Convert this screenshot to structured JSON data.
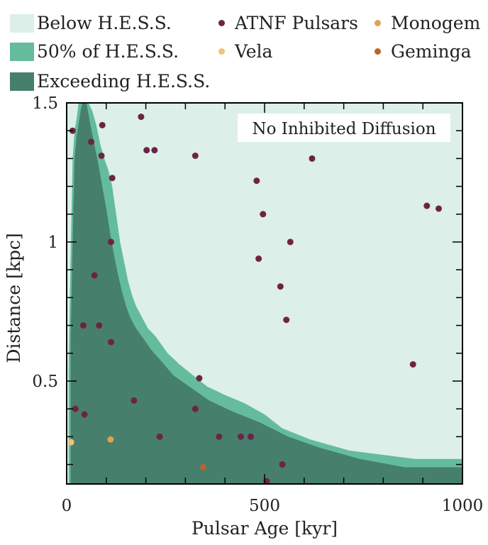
{
  "legend": {
    "below": "Below H.E.S.S.",
    "half": "50% of H.E.S.S.",
    "exceeding": "Exceeding H.E.S.S.",
    "atnf": "ATNF Pulsars",
    "vela": "Vela",
    "monogem": "Monogem",
    "geminga": "Geminga"
  },
  "colors": {
    "below": "#dcefe9",
    "half": "#64bc9c",
    "exceeding": "#467f6c",
    "atnf": "#6e2346",
    "vela": "#f0c27b",
    "monogem": "#e0a24d",
    "geminga": "#b8642a"
  },
  "chart_data": {
    "type": "scatter",
    "xlabel": "Pulsar Age [kyr]",
    "ylabel": "Distance [kpc]",
    "xlim": [
      0,
      1000
    ],
    "ylim": [
      0.13,
      1.5
    ],
    "xticks": [
      0,
      500,
      1000
    ],
    "yticks": [
      0.5,
      1,
      1.5
    ],
    "ytick_labels": [
      "0.5",
      "1",
      "1.5"
    ],
    "annotation": "No Inhibited Diffusion",
    "regions": {
      "half_boundary": [
        [
          5,
          0.13
        ],
        [
          5,
          0.55
        ],
        [
          10,
          0.95
        ],
        [
          15,
          1.3
        ],
        [
          20,
          1.4
        ],
        [
          25,
          1.44
        ],
        [
          30,
          1.5
        ],
        [
          55,
          1.5
        ],
        [
          65,
          1.47
        ],
        [
          75,
          1.42
        ],
        [
          85,
          1.35
        ],
        [
          95,
          1.3
        ],
        [
          105,
          1.26
        ],
        [
          115,
          1.2
        ],
        [
          125,
          1.1
        ],
        [
          135,
          1.0
        ],
        [
          145,
          0.93
        ],
        [
          155,
          0.86
        ],
        [
          165,
          0.81
        ],
        [
          175,
          0.77
        ],
        [
          190,
          0.73
        ],
        [
          205,
          0.69
        ],
        [
          225,
          0.66
        ],
        [
          255,
          0.6
        ],
        [
          285,
          0.56
        ],
        [
          320,
          0.52
        ],
        [
          355,
          0.48
        ],
        [
          400,
          0.45
        ],
        [
          450,
          0.42
        ],
        [
          500,
          0.38
        ],
        [
          545,
          0.33
        ],
        [
          615,
          0.29
        ],
        [
          715,
          0.25
        ],
        [
          880,
          0.22
        ],
        [
          1000,
          0.22
        ]
      ],
      "exceeding_boundary": [
        [
          10,
          0.13
        ],
        [
          10,
          0.65
        ],
        [
          15,
          1.0
        ],
        [
          20,
          1.3
        ],
        [
          25,
          1.38
        ],
        [
          30,
          1.42
        ],
        [
          35,
          1.47
        ],
        [
          40,
          1.5
        ],
        [
          50,
          1.5
        ],
        [
          60,
          1.42
        ],
        [
          70,
          1.35
        ],
        [
          80,
          1.28
        ],
        [
          90,
          1.2
        ],
        [
          100,
          1.12
        ],
        [
          110,
          1.03
        ],
        [
          120,
          0.95
        ],
        [
          130,
          0.88
        ],
        [
          140,
          0.82
        ],
        [
          150,
          0.77
        ],
        [
          160,
          0.73
        ],
        [
          175,
          0.69
        ],
        [
          195,
          0.65
        ],
        [
          215,
          0.61
        ],
        [
          240,
          0.57
        ],
        [
          270,
          0.52
        ],
        [
          310,
          0.48
        ],
        [
          360,
          0.43
        ],
        [
          420,
          0.39
        ],
        [
          490,
          0.35
        ],
        [
          560,
          0.3
        ],
        [
          640,
          0.26
        ],
        [
          740,
          0.22
        ],
        [
          855,
          0.19
        ],
        [
          1000,
          0.19
        ]
      ]
    },
    "series": [
      {
        "name": "ATNF Pulsars",
        "points": [
          [
            15,
            1.4
          ],
          [
            90,
            1.42
          ],
          [
            62,
            1.36
          ],
          [
            88,
            1.31
          ],
          [
            115,
            1.23
          ],
          [
            188,
            1.45
          ],
          [
            202,
            1.33
          ],
          [
            222,
            1.33
          ],
          [
            325,
            1.31
          ],
          [
            620,
            1.3
          ],
          [
            480,
            1.22
          ],
          [
            496,
            1.1
          ],
          [
            910,
            1.13
          ],
          [
            940,
            1.12
          ],
          [
            112,
            1.0
          ],
          [
            565,
            1.0
          ],
          [
            485,
            0.94
          ],
          [
            70,
            0.88
          ],
          [
            540,
            0.84
          ],
          [
            555,
            0.72
          ],
          [
            42,
            0.7
          ],
          [
            82,
            0.7
          ],
          [
            112,
            0.64
          ],
          [
            875,
            0.56
          ],
          [
            335,
            0.51
          ],
          [
            170,
            0.43
          ],
          [
            22,
            0.4
          ],
          [
            325,
            0.4
          ],
          [
            45,
            0.38
          ],
          [
            235,
            0.3
          ],
          [
            385,
            0.3
          ],
          [
            440,
            0.3
          ],
          [
            465,
            0.3
          ],
          [
            545,
            0.2
          ],
          [
            505,
            0.14
          ]
        ]
      },
      {
        "name": "Vela",
        "points": [
          [
            11,
            0.28
          ]
        ]
      },
      {
        "name": "Monogem",
        "points": [
          [
            111,
            0.29
          ]
        ]
      },
      {
        "name": "Geminga",
        "points": [
          [
            345,
            0.19
          ]
        ]
      }
    ],
    "faint_points": [
      [
        840,
        1.37
      ],
      [
        895,
        1.37
      ]
    ]
  }
}
